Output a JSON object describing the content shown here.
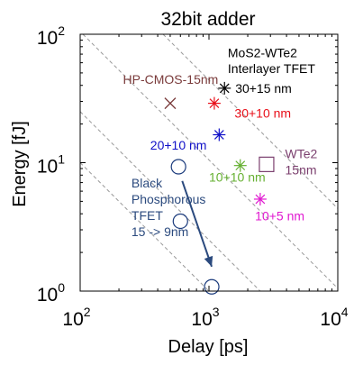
{
  "chart_data": {
    "type": "scatter",
    "title": "32bit adder",
    "xlabel": "Delay [ps]",
    "ylabel": "Energy [fJ]",
    "xscale": "log",
    "yscale": "log",
    "xlim": [
      100,
      10000
    ],
    "ylim": [
      1,
      100
    ],
    "xticks": [
      {
        "value": 100,
        "base": "10",
        "exp": "2"
      },
      {
        "value": 1000,
        "base": "10",
        "exp": "3"
      },
      {
        "value": 10000,
        "base": "10",
        "exp": "4"
      }
    ],
    "yticks": [
      {
        "value": 1,
        "base": "10",
        "exp": "0"
      },
      {
        "value": 10,
        "base": "10",
        "exp": "1"
      },
      {
        "value": 100,
        "base": "10",
        "exp": "2"
      }
    ],
    "grid": false,
    "points": [
      {
        "group": "HP-CMOS-15nm",
        "marker": "x",
        "color": "#7a3b3b",
        "x": 500,
        "y": 29
      },
      {
        "group": "MoS2-WTe2 Interlayer TFET 30+15 nm",
        "marker": "asterisk",
        "color": "#000000",
        "x": 1320,
        "y": 38
      },
      {
        "group": "MoS2-WTe2 Interlayer TFET 30+10 nm",
        "marker": "asterisk",
        "color": "#e8101a",
        "x": 1100,
        "y": 29
      },
      {
        "group": "MoS2-WTe2 Interlayer TFET 20+10 nm",
        "marker": "asterisk",
        "color": "#1010c8",
        "x": 1200,
        "y": 16.5
      },
      {
        "group": "MoS2-WTe2 Interlayer TFET 10+10 nm",
        "marker": "asterisk",
        "color": "#66b032",
        "x": 1750,
        "y": 9.5
      },
      {
        "group": "MoS2-WTe2 Interlayer TFET 10+5 nm",
        "marker": "asterisk",
        "color": "#e019d0",
        "x": 2500,
        "y": 5.2
      },
      {
        "group": "WTe2 15nm",
        "marker": "square",
        "color": "#7b3f6e",
        "x": 2800,
        "y": 9.7
      },
      {
        "group": "Black Phosphorous TFET",
        "marker": "circle",
        "color": "#1a3a7c",
        "x": 580,
        "y": 9.3
      },
      {
        "group": "Black Phosphorous TFET",
        "marker": "circle",
        "color": "#1a3a7c",
        "x": 600,
        "y": 3.5
      },
      {
        "group": "Black Phosphorous TFET",
        "marker": "circle",
        "color": "#1a3a7c",
        "x": 1050,
        "y": 1.08
      }
    ],
    "reference_lines": [
      {
        "style": "dashed",
        "color": "#999999",
        "points": [
          [
            440,
            100
          ],
          [
            10000,
            4.4
          ]
        ]
      },
      {
        "style": "dashed",
        "color": "#999999",
        "points": [
          [
            105,
            100
          ],
          [
            10000,
            1.05
          ]
        ]
      },
      {
        "style": "dashed",
        "color": "#999999",
        "points": [
          [
            100,
            25
          ],
          [
            2500,
            1
          ]
        ]
      },
      {
        "style": "dashed",
        "color": "#999999",
        "points": [
          [
            100,
            10
          ],
          [
            1000,
            1
          ]
        ]
      }
    ],
    "arrow": {
      "color": "#2b4a7e",
      "from": [
        620,
        7.2
      ],
      "to": [
        1050,
        1.55
      ]
    },
    "annotations": [
      {
        "id": "ann-mos2-1",
        "lines": [
          "MoS2-WTe2"
        ],
        "color": "#000000",
        "x": 1400,
        "y": 66
      },
      {
        "id": "ann-mos2-2",
        "lines": [
          "Interlayer TFET"
        ],
        "color": "#000000",
        "x": 1400,
        "y": 50
      },
      {
        "id": "ann-hpcmos",
        "lines": [
          "HP-CMOS-15nm"
        ],
        "color": "#7a3b3b",
        "x": 215,
        "y": 41
      },
      {
        "id": "ann-3015",
        "lines": [
          "30+15 nm"
        ],
        "color": "#000000",
        "x": 1600,
        "y": 35
      },
      {
        "id": "ann-3010",
        "lines": [
          "30+10 nm"
        ],
        "color": "#e8101a",
        "x": 1580,
        "y": 22.5
      },
      {
        "id": "ann-2010",
        "lines": [
          "20+10 nm"
        ],
        "color": "#1010c8",
        "x": 350,
        "y": 12.6
      },
      {
        "id": "ann-wte2",
        "lines": [
          "WTe2",
          "15nm"
        ],
        "color": "#7b3f6e",
        "x": 3900,
        "y": 10.8
      },
      {
        "id": "ann-1010",
        "lines": [
          "10+10 nm"
        ],
        "color": "#66b032",
        "x": 1000,
        "y": 7.1
      },
      {
        "id": "ann-bp",
        "lines": [
          "Black",
          "Phosphorous",
          "TFET",
          "15 -> 9nm"
        ],
        "color": "#2b4a7e",
        "x": 250,
        "y": 6.4
      },
      {
        "id": "ann-105",
        "lines": [
          "10+5 nm"
        ],
        "color": "#e019d0",
        "x": 2280,
        "y": 3.55
      }
    ]
  }
}
